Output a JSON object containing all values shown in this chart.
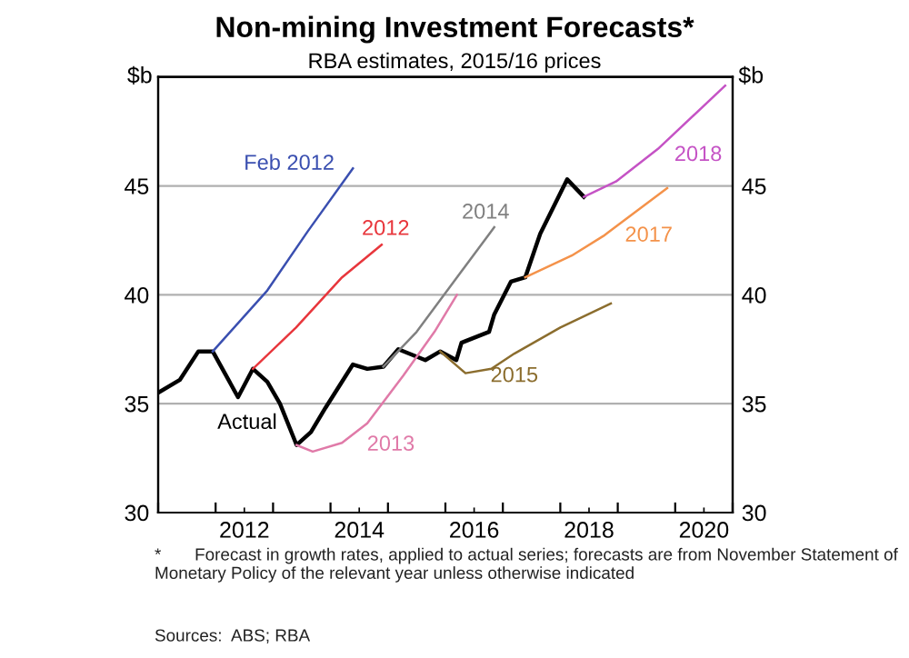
{
  "chart_data": {
    "type": "line",
    "title": "Non-mining Investment Forecasts*",
    "subtitle": "RBA estimates, 2015/16 prices",
    "ylabel": "$b",
    "y2label": "$b",
    "xlim": [
      2011,
      2021
    ],
    "ylim": [
      30,
      50
    ],
    "y2lim": [
      30,
      50
    ],
    "yticks": [
      30,
      35,
      40,
      45
    ],
    "y2ticks": [
      30,
      35,
      40,
      45
    ],
    "xticks": [
      {
        "value": 2011,
        "label": null
      },
      {
        "value": 2012,
        "label": null
      },
      {
        "value": 2012.5,
        "label": "2012"
      },
      {
        "value": 2013,
        "label": null
      },
      {
        "value": 2014,
        "label": null
      },
      {
        "value": 2014.5,
        "label": "2014"
      },
      {
        "value": 2015,
        "label": null
      },
      {
        "value": 2016,
        "label": null
      },
      {
        "value": 2016.5,
        "label": "2016"
      },
      {
        "value": 2017,
        "label": null
      },
      {
        "value": 2018,
        "label": null
      },
      {
        "value": 2018.5,
        "label": "2018"
      },
      {
        "value": 2019,
        "label": null
      },
      {
        "value": 2020,
        "label": null
      },
      {
        "value": 2020.5,
        "label": "2020"
      },
      {
        "value": 2021,
        "label": null
      }
    ],
    "grid": "y",
    "legend": false,
    "series": [
      {
        "name": "Actual",
        "color": "#000000",
        "x": [
          2011.0,
          2011.38,
          2011.7,
          2011.95,
          2012.39,
          2012.65,
          2012.9,
          2013.12,
          2013.41,
          2013.66,
          2013.91,
          2014.39,
          2014.64,
          2014.92,
          2015.18,
          2015.65,
          2015.91,
          2016.19,
          2016.28,
          2016.76,
          2016.85,
          2017.14,
          2017.39,
          2017.65,
          2018.12,
          2018.41
        ],
        "values": [
          35.5,
          36.1,
          37.4,
          37.4,
          35.3,
          36.6,
          36.0,
          35.0,
          33.1,
          33.7,
          34.8,
          36.8,
          36.6,
          36.7,
          37.5,
          37.0,
          37.4,
          37.0,
          37.8,
          38.3,
          39.1,
          40.6,
          40.8,
          42.8,
          45.3,
          44.5
        ]
      },
      {
        "name": "Feb 2012",
        "color": "#3a4fb0",
        "x": [
          2011.95,
          2012.9,
          2013.6,
          2014.39
        ],
        "values": [
          37.4,
          40.2,
          42.9,
          45.8
        ]
      },
      {
        "name": "2012",
        "color": "#e8363c",
        "x": [
          2012.65,
          2013.4,
          2014.2,
          2014.89
        ],
        "values": [
          36.6,
          38.5,
          40.8,
          42.3
        ]
      },
      {
        "name": "2013",
        "color": "#e07aa8",
        "x": [
          2013.41,
          2013.69,
          2014.2,
          2014.64,
          2015.27,
          2015.81,
          2016.2
        ],
        "values": [
          33.1,
          32.8,
          33.2,
          34.1,
          36.3,
          38.3,
          40.0
        ]
      },
      {
        "name": "2014",
        "color": "#808080",
        "x": [
          2014.92,
          2015.5,
          2016.06,
          2016.85
        ],
        "values": [
          36.7,
          38.3,
          40.3,
          43.1
        ]
      },
      {
        "name": "2015",
        "color": "#8b6d2e",
        "x": [
          2015.91,
          2016.35,
          2016.8,
          2017.2,
          2018.0,
          2018.88
        ],
        "values": [
          37.4,
          36.4,
          36.6,
          37.3,
          38.5,
          39.6
        ]
      },
      {
        "name": "2017",
        "color": "#f4924a",
        "x": [
          2017.39,
          2018.2,
          2018.75,
          2019.86
        ],
        "values": [
          40.8,
          41.8,
          42.7,
          44.9
        ]
      },
      {
        "name": "2018",
        "color": "#c553c5",
        "x": [
          2018.41,
          2018.97,
          2019.7,
          2020.87
        ],
        "values": [
          44.5,
          45.2,
          46.7,
          49.6
        ]
      }
    ],
    "annotations": [
      "*       Forecast in growth rates, applied to actual series; forecasts are from November Statement of Monetary Policy of the relevant year unless otherwise indicated",
      "Sources:  ABS; RBA"
    ]
  }
}
